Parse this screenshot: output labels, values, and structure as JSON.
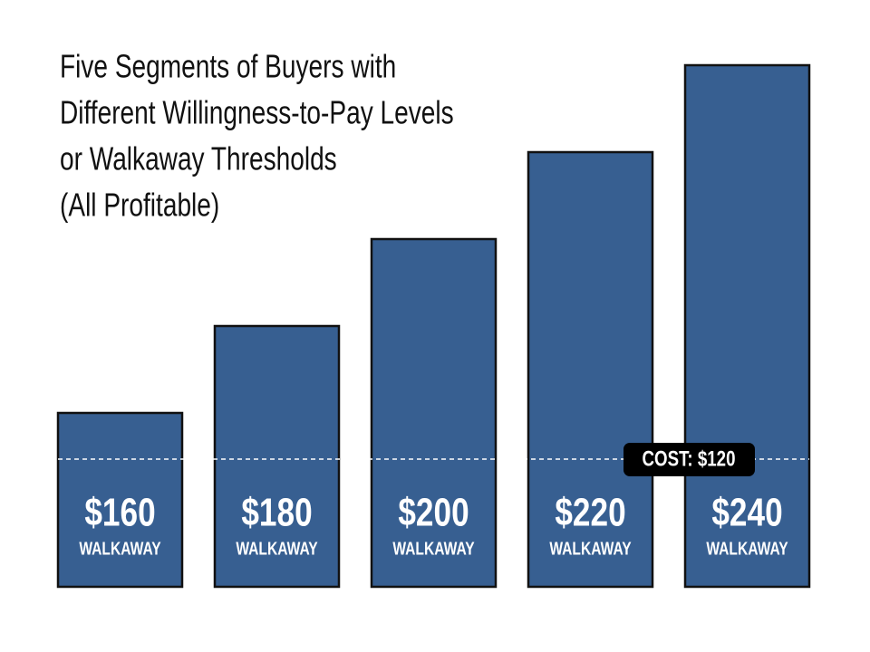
{
  "chart_data": {
    "type": "bar",
    "title": [
      "Five Segments of Buyers with",
      "Different Willingness-to-Pay Levels",
      "or Walkaway Thresholds",
      "(All Profitable)"
    ],
    "categories": [
      "WALKAWAY",
      "WALKAWAY",
      "WALKAWAY",
      "WALKAWAY",
      "WALKAWAY"
    ],
    "values": [
      160,
      180,
      200,
      220,
      240
    ],
    "value_labels": [
      "$160",
      "$180",
      "$200",
      "$220",
      "$240"
    ],
    "color": "#375f91",
    "ylim": [
      120,
      240
    ],
    "annotation": "COST: $120"
  }
}
